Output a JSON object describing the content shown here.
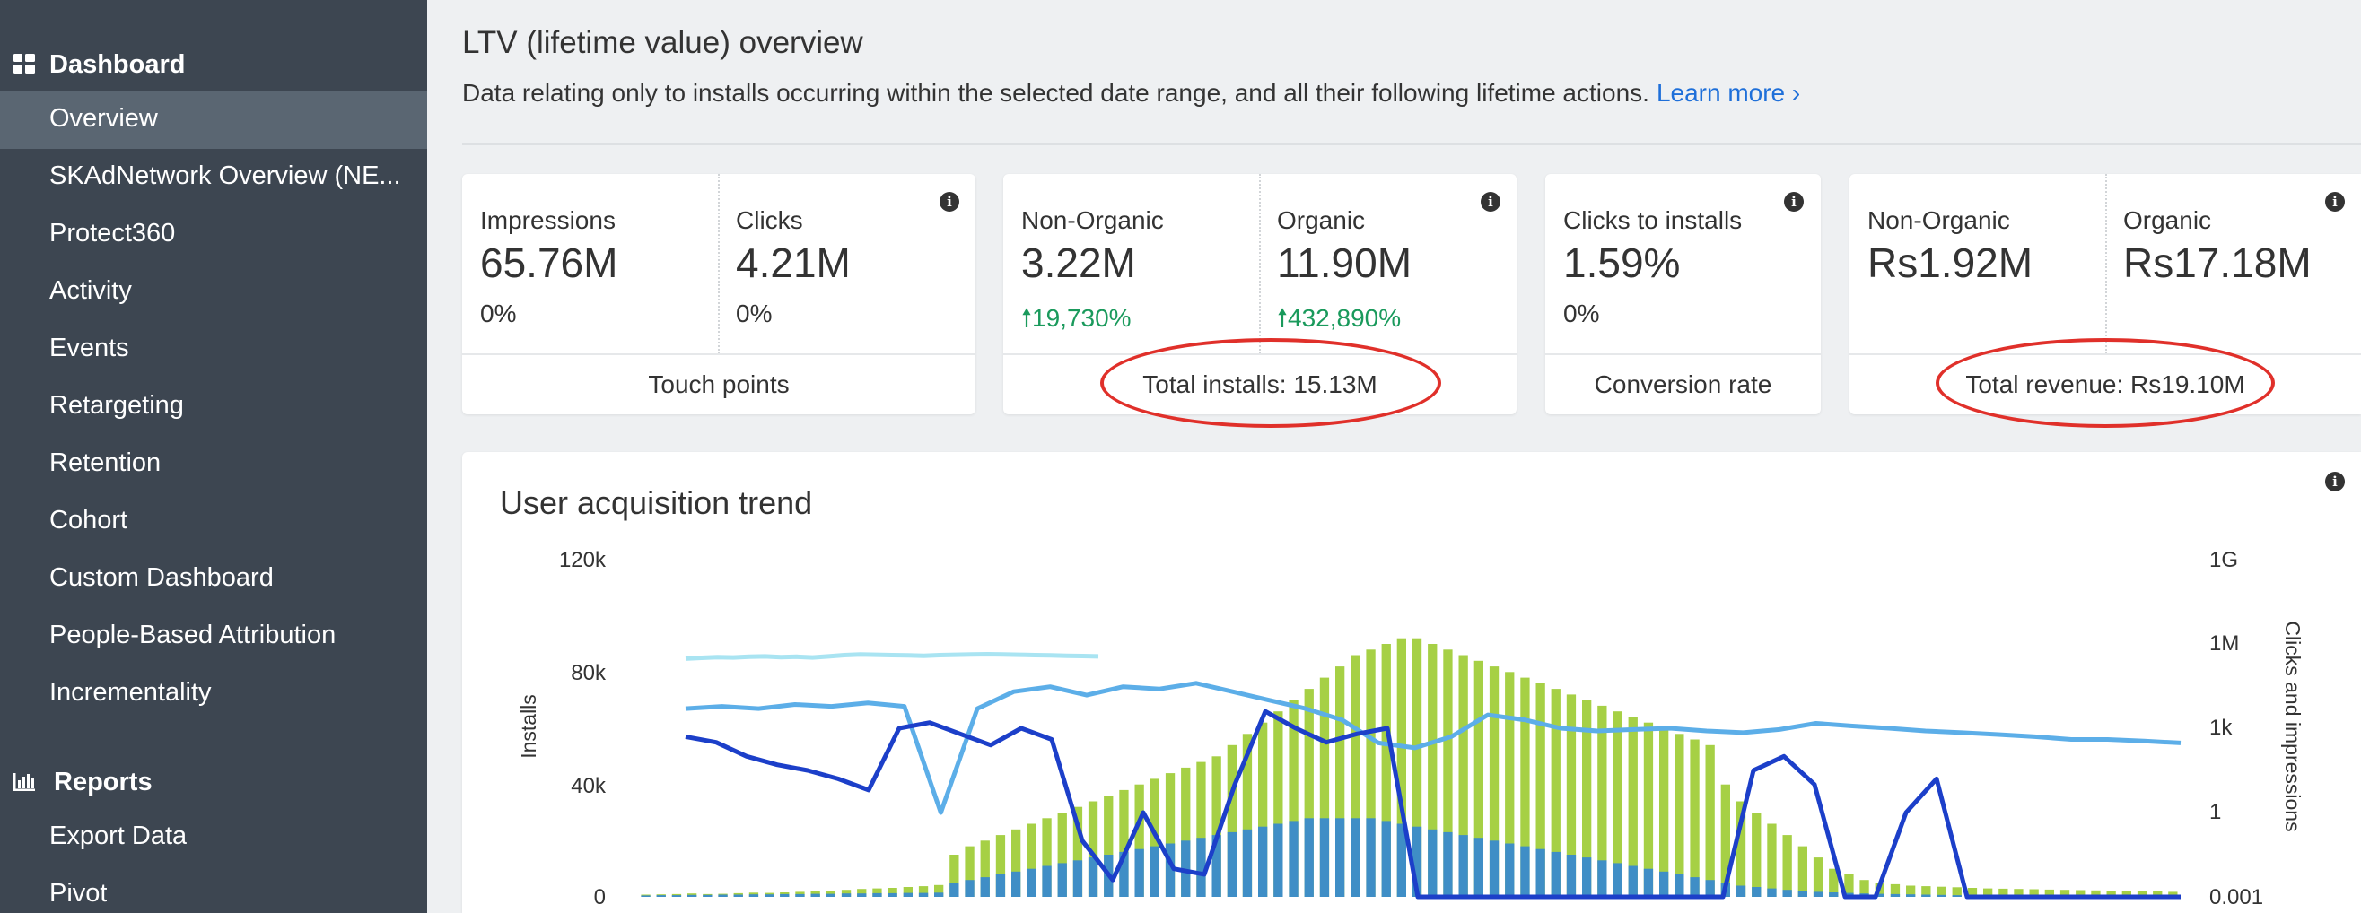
{
  "sidebar": {
    "dashboard_label": "Dashboard",
    "items": [
      {
        "label": "Overview"
      },
      {
        "label": "SKAdNetwork Overview (NE..."
      },
      {
        "label": "Protect360"
      },
      {
        "label": "Activity"
      },
      {
        "label": "Events"
      },
      {
        "label": "Retargeting"
      },
      {
        "label": "Retention"
      },
      {
        "label": "Cohort"
      },
      {
        "label": "Custom Dashboard"
      },
      {
        "label": "People-Based Attribution"
      },
      {
        "label": "Incrementality"
      }
    ],
    "reports_label": "Reports",
    "report_items": [
      {
        "label": "Export Data"
      },
      {
        "label": "Pivot"
      }
    ]
  },
  "header": {
    "title": "LTV (lifetime value) overview",
    "subtitle": "Data relating only to installs occurring within the selected date range, and all their following lifetime actions.",
    "learn_more": "Learn more ›"
  },
  "cards": {
    "touch_points": {
      "impressions_label": "Impressions",
      "impressions_value": "65.76M",
      "impressions_change": "0%",
      "clicks_label": "Clicks",
      "clicks_value": "4.21M",
      "clicks_change": "0%",
      "footer": "Touch points"
    },
    "installs": {
      "non_organic_label": "Non-Organic",
      "non_organic_value": "3.22M",
      "non_organic_change": "19,730%",
      "organic_label": "Organic",
      "organic_value": "11.90M",
      "organic_change": "432,890%",
      "footer": "Total installs: 15.13M"
    },
    "conversion": {
      "label": "Clicks to installs",
      "value": "1.59%",
      "change": "0%",
      "footer": "Conversion rate"
    },
    "revenue": {
      "non_organic_label": "Non-Organic",
      "non_organic_value": "Rs1.92M",
      "organic_label": "Organic",
      "organic_value": "Rs17.18M",
      "footer": "Total revenue: Rs19.10M"
    },
    "info_glyph": "i"
  },
  "chart": {
    "title": "User acquisition trend",
    "y_left_label": "Installs",
    "y_right_label": "Clicks and impressions",
    "y_left_ticks": [
      "120k",
      "80k",
      "40k",
      "0"
    ],
    "y_right_ticks": [
      "1G",
      "1M",
      "1k",
      "1",
      "0.001"
    ]
  },
  "chart_data": {
    "type": "bar",
    "title": "User acquisition trend",
    "ylabel": "Installs",
    "ylabel_right": "Clicks and impressions",
    "ylim": [
      0,
      120000
    ],
    "ylim_right_log": [
      0.001,
      1000000000
    ],
    "series": [
      {
        "type": "bar",
        "axis": "left",
        "color": "#a6d045",
        "values": [
          800,
          900,
          1000,
          1200,
          1000,
          1100,
          1300,
          1500,
          1400,
          1600,
          1800,
          2000,
          2200,
          2500,
          2800,
          3000,
          3200,
          3500,
          3800,
          4200,
          15000,
          18000,
          20000,
          22000,
          24000,
          26000,
          28000,
          30000,
          32000,
          34000,
          36000,
          38000,
          40000,
          42000,
          44000,
          46000,
          48000,
          50000,
          54000,
          58000,
          62000,
          66000,
          70000,
          74000,
          78000,
          82000,
          86000,
          88000,
          90000,
          92000,
          92000,
          90000,
          88000,
          86000,
          84000,
          82000,
          80000,
          78000,
          76000,
          74000,
          72000,
          70000,
          68000,
          66000,
          64000,
          62000,
          60000,
          58000,
          56000,
          54000,
          40000,
          34000,
          30000,
          26000,
          22000,
          18000,
          14000,
          10000,
          8000,
          6000,
          5000,
          4500,
          4000,
          3800,
          3600,
          3400,
          3200,
          3000,
          2900,
          2800,
          2700,
          2600,
          2500,
          2400,
          2300,
          2200,
          2100,
          2000,
          1900,
          1800
        ]
      },
      {
        "type": "bar",
        "axis": "left",
        "color": "#3f8ec6",
        "values": [
          500,
          600,
          600,
          700,
          700,
          800,
          800,
          900,
          900,
          1000,
          1000,
          1100,
          1100,
          1200,
          1200,
          1300,
          1300,
          1400,
          1400,
          1500,
          5000,
          6000,
          7000,
          8000,
          9000,
          10000,
          11000,
          12000,
          13000,
          14000,
          15000,
          16000,
          17000,
          18000,
          19000,
          20000,
          21000,
          22000,
          23000,
          24000,
          25000,
          26000,
          27000,
          28000,
          28000,
          28000,
          28000,
          28000,
          27000,
          26000,
          25000,
          24000,
          23000,
          22000,
          21000,
          20000,
          19000,
          18000,
          17000,
          16000,
          15000,
          14000,
          13000,
          12000,
          11000,
          10000,
          9000,
          8000,
          7000,
          6000,
          5000,
          4000,
          3500,
          3000,
          2500,
          2000,
          1800,
          1600,
          1400,
          1200,
          1100,
          1000,
          900,
          800,
          700,
          600,
          600,
          500,
          500,
          500,
          400,
          400,
          400,
          400,
          300,
          300,
          300,
          300,
          300,
          300
        ]
      },
      {
        "type": "line",
        "axis": "right",
        "name": "",
        "color": "#a9e4f2",
        "values": [
          300000,
          320000,
          340000,
          330000,
          350000,
          360000,
          340000,
          350000,
          330000,
          360000,
          400000,
          420000,
          410000,
          400000,
          390000,
          380000,
          400000,
          410000,
          420000,
          430000,
          420000,
          410000,
          400000,
          390000,
          380000,
          370000,
          360000
        ]
      },
      {
        "type": "line",
        "axis": "right",
        "name": "",
        "color": "#5caee8",
        "values": [
          5000,
          6000,
          5000,
          7000,
          6000,
          8000,
          6000,
          1,
          5000,
          20000,
          30000,
          15000,
          30000,
          25000,
          40000,
          20000,
          10000,
          5000,
          2000,
          300,
          200,
          500,
          3000,
          2000,
          1000,
          800,
          900,
          1000,
          800,
          700,
          900,
          1500,
          1200,
          1000,
          800,
          700,
          600,
          500,
          400,
          400,
          350,
          300
        ]
      },
      {
        "type": "line",
        "axis": "left",
        "name": "",
        "color": "#1c3fc9",
        "values": [
          57000,
          55000,
          50000,
          47000,
          45000,
          42000,
          38000,
          60000,
          62000,
          58000,
          54000,
          60000,
          56000,
          20000,
          6000,
          30000,
          10000,
          8000,
          40000,
          66000,
          60000,
          55000,
          58000,
          60000,
          0,
          0,
          0,
          0,
          0,
          0,
          0,
          0,
          0,
          0,
          0,
          45000,
          50000,
          40000,
          0,
          0,
          30000,
          42000,
          0,
          0,
          0,
          0,
          0,
          0,
          0,
          0
        ]
      }
    ]
  }
}
